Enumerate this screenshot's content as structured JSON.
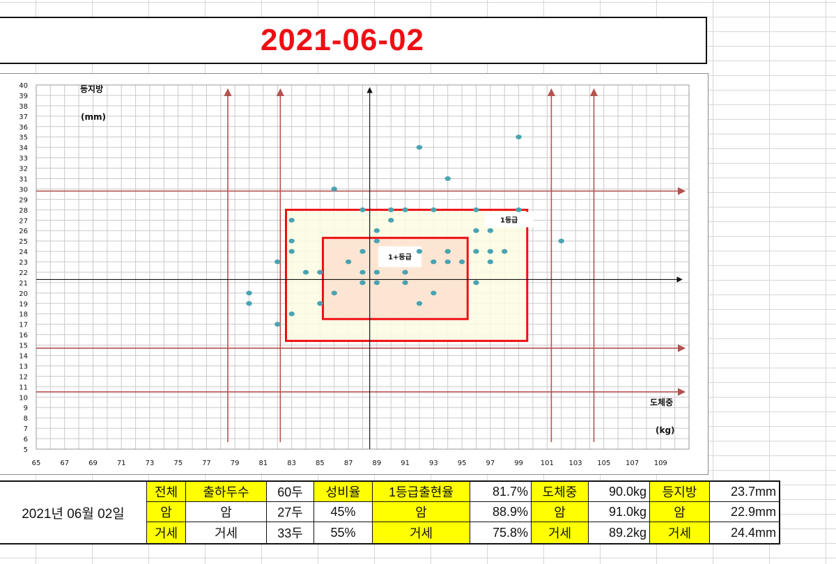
{
  "title": "2021-06-02",
  "chart_data": {
    "type": "scatter",
    "ylabel": "등지방",
    "yunit": "(mm)",
    "xlabel": "도체중",
    "xunit": "(kg)",
    "xlim": [
      65,
      111
    ],
    "ylim": [
      5,
      40
    ],
    "xticks": [
      "65",
      "67",
      "69",
      "71",
      "73",
      "75",
      "77",
      "79",
      "81",
      "83",
      "85",
      "87",
      "89",
      "91",
      "93",
      "95",
      "97",
      "99",
      "101",
      "103",
      "105",
      "107",
      "109"
    ],
    "yticks": [
      "5",
      "6",
      "7",
      "8",
      "9",
      "10",
      "11",
      "12",
      "13",
      "14",
      "15",
      "16",
      "17",
      "18",
      "19",
      "20",
      "21",
      "22",
      "23",
      "24",
      "25",
      "26",
      "27",
      "28",
      "29",
      "30",
      "31",
      "32",
      "33",
      "34",
      "35",
      "36",
      "37",
      "38",
      "39",
      "40"
    ],
    "grid": true,
    "point_color": "#4aa3b0",
    "points": [
      [
        80,
        20
      ],
      [
        80,
        19
      ],
      [
        82,
        23
      ],
      [
        82,
        17
      ],
      [
        83,
        27
      ],
      [
        83,
        25
      ],
      [
        83,
        24
      ],
      [
        83,
        18
      ],
      [
        84,
        22
      ],
      [
        85,
        22
      ],
      [
        85,
        19
      ],
      [
        86,
        30
      ],
      [
        86,
        20
      ],
      [
        87,
        23
      ],
      [
        88,
        28
      ],
      [
        88,
        24
      ],
      [
        88,
        22
      ],
      [
        88,
        21
      ],
      [
        89,
        26
      ],
      [
        89,
        25
      ],
      [
        89,
        22
      ],
      [
        89,
        21
      ],
      [
        90,
        28
      ],
      [
        90,
        27
      ],
      [
        91,
        28
      ],
      [
        91,
        22
      ],
      [
        91,
        21
      ],
      [
        92,
        34
      ],
      [
        92,
        24
      ],
      [
        92,
        19
      ],
      [
        93,
        28
      ],
      [
        93,
        23
      ],
      [
        93,
        20
      ],
      [
        94,
        31
      ],
      [
        94,
        24
      ],
      [
        94,
        23
      ],
      [
        95,
        23
      ],
      [
        96,
        28
      ],
      [
        96,
        26
      ],
      [
        96,
        24
      ],
      [
        96,
        21
      ],
      [
        97,
        26
      ],
      [
        97,
        24
      ],
      [
        97,
        23
      ],
      [
        98,
        24
      ],
      [
        99,
        35
      ],
      [
        99,
        28
      ],
      [
        102,
        25
      ]
    ],
    "axis_cross": {
      "x": 88.5,
      "y": 21.3
    },
    "arrow_color": "#b3524f",
    "vertical_limits": [
      78.5,
      82.2,
      101.3,
      104.3
    ],
    "horizontal_limits": [
      29.8,
      14.7,
      10.5
    ],
    "regions": [
      {
        "label": "1등급",
        "x": [
          82.6,
          99.6
        ],
        "y": [
          15.4,
          28.0
        ],
        "fill": "#fdfbe3"
      },
      {
        "label": "1+등급",
        "x": [
          85.2,
          95.4
        ],
        "y": [
          17.5,
          25.3
        ],
        "fill": "#fbe2cf"
      }
    ],
    "region_border": "#ee0f14"
  },
  "stats": {
    "date": "2021년 06월 02일",
    "rows": [
      {
        "h1": "전체",
        "count": "60두",
        "h2": "성비율",
        "ratio": "",
        "h3": "1등급출현율",
        "grade": "81.7%",
        "h4": "도체중",
        "weight": "90.0kg",
        "h5": "등지방",
        "fat": "23.7mm"
      },
      {
        "h1": "암",
        "count": "27두",
        "h2": "45%",
        "ratio": "",
        "h3": "암",
        "grade": "88.9%",
        "h4": "암",
        "weight": "91.0kg",
        "h5": "암",
        "fat": "22.9mm"
      },
      {
        "h1": "거세",
        "count": "33두",
        "h2": "55%",
        "ratio": "",
        "h3": "거세",
        "grade": "75.8%",
        "h4": "거세",
        "weight": "89.2kg",
        "h5": "거세",
        "fat": "24.4mm"
      }
    ],
    "label_col": [
      "출하두수",
      "암",
      "거세"
    ],
    "highlight_color": "#ffff00"
  }
}
